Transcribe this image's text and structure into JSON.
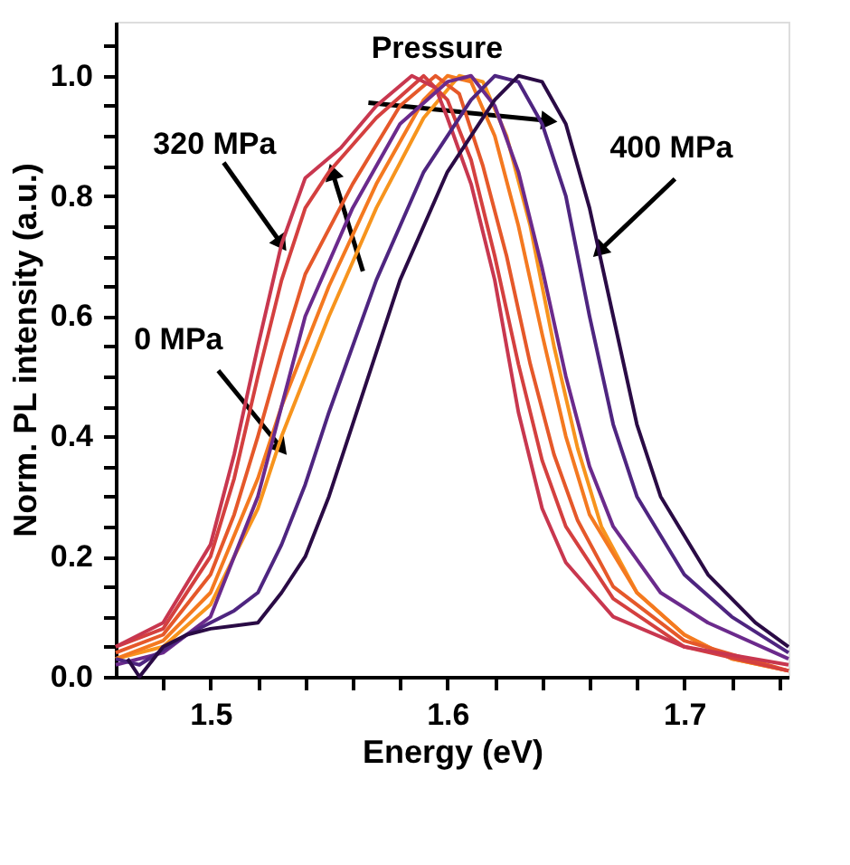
{
  "chart_data": {
    "type": "line",
    "xlabel": "Energy (eV)",
    "ylabel": "Norm. PL intensity (a.u.)",
    "xlim": [
      1.46,
      1.744
    ],
    "ylim": [
      0,
      1.09
    ],
    "xticks": [
      {
        "value": 1.48,
        "label": null
      },
      1.5,
      {
        "value": 1.52,
        "label": null
      },
      {
        "value": 1.54,
        "label": null
      },
      {
        "value": 1.56,
        "label": null
      },
      {
        "value": 1.58,
        "label": null
      },
      1.6,
      {
        "value": 1.62,
        "label": null
      },
      {
        "value": 1.64,
        "label": null
      },
      {
        "value": 1.66,
        "label": null
      },
      {
        "value": 1.68,
        "label": null
      },
      1.7,
      {
        "value": 1.72,
        "label": null
      },
      {
        "value": 1.74,
        "label": null
      }
    ],
    "yticks": [
      {
        "value": 0,
        "label": "0.0"
      },
      {
        "value": 0.05,
        "label": null
      },
      {
        "value": 0.1,
        "label": null
      },
      {
        "value": 0.15,
        "label": null
      },
      0.2,
      {
        "value": 0.25,
        "label": null
      },
      {
        "value": 0.3,
        "label": null
      },
      {
        "value": 0.35,
        "label": null
      },
      0.4,
      {
        "value": 0.45,
        "label": null
      },
      {
        "value": 0.5,
        "label": null
      },
      {
        "value": 0.55,
        "label": null
      },
      0.6,
      {
        "value": 0.65,
        "label": null
      },
      {
        "value": 0.7,
        "label": null
      },
      {
        "value": 0.75,
        "label": null
      },
      0.8,
      {
        "value": 0.85,
        "label": null
      },
      {
        "value": 0.9,
        "label": null
      },
      {
        "value": 0.95,
        "label": null
      },
      {
        "value": 1.0,
        "label": "1.0"
      },
      {
        "value": 1.05,
        "label": null
      }
    ],
    "grid": false,
    "legend": false,
    "marker": "none",
    "line_style": "solid",
    "series": [
      {
        "color": "#f7941d",
        "x": [
          1.46,
          1.48,
          1.5,
          1.52,
          1.53,
          1.55,
          1.57,
          1.59,
          1.605,
          1.615,
          1.625,
          1.635,
          1.645,
          1.655,
          1.665,
          1.68,
          1.7,
          1.72,
          1.744
        ],
        "values": [
          0.03,
          0.05,
          0.12,
          0.28,
          0.4,
          0.6,
          0.78,
          0.93,
          1.0,
          0.99,
          0.9,
          0.75,
          0.55,
          0.38,
          0.25,
          0.14,
          0.07,
          0.03,
          0.01
        ]
      },
      {
        "color": "#f47920",
        "x": [
          1.46,
          1.48,
          1.5,
          1.52,
          1.53,
          1.55,
          1.57,
          1.59,
          1.6,
          1.61,
          1.62,
          1.63,
          1.64,
          1.65,
          1.66,
          1.68,
          1.7,
          1.72,
          1.744
        ],
        "values": [
          0.03,
          0.06,
          0.14,
          0.33,
          0.45,
          0.65,
          0.82,
          0.96,
          1.0,
          0.99,
          0.9,
          0.75,
          0.57,
          0.4,
          0.27,
          0.14,
          0.07,
          0.03,
          0.01
        ]
      },
      {
        "color": "#e5582a",
        "x": [
          1.46,
          1.48,
          1.5,
          1.51,
          1.52,
          1.53,
          1.54,
          1.56,
          1.58,
          1.595,
          1.605,
          1.615,
          1.625,
          1.635,
          1.645,
          1.655,
          1.67,
          1.7,
          1.744
        ],
        "values": [
          0.04,
          0.07,
          0.17,
          0.27,
          0.4,
          0.54,
          0.67,
          0.82,
          0.95,
          1.0,
          0.97,
          0.85,
          0.7,
          0.52,
          0.37,
          0.26,
          0.15,
          0.06,
          0.01
        ]
      },
      {
        "color": "#d4403f",
        "x": [
          1.46,
          1.48,
          1.5,
          1.51,
          1.52,
          1.53,
          1.54,
          1.55,
          1.57,
          1.59,
          1.6,
          1.61,
          1.62,
          1.63,
          1.64,
          1.65,
          1.67,
          1.7,
          1.744
        ],
        "values": [
          0.05,
          0.08,
          0.2,
          0.33,
          0.5,
          0.66,
          0.78,
          0.84,
          0.93,
          1.0,
          0.96,
          0.86,
          0.7,
          0.52,
          0.36,
          0.25,
          0.13,
          0.05,
          0.01
        ]
      },
      {
        "color": "#c8374f",
        "x": [
          1.46,
          1.48,
          1.5,
          1.51,
          1.52,
          1.53,
          1.54,
          1.555,
          1.57,
          1.585,
          1.595,
          1.6,
          1.61,
          1.62,
          1.63,
          1.64,
          1.65,
          1.67,
          1.7,
          1.744
        ],
        "values": [
          0.05,
          0.09,
          0.22,
          0.37,
          0.55,
          0.72,
          0.83,
          0.88,
          0.95,
          1.0,
          0.98,
          0.93,
          0.82,
          0.66,
          0.44,
          0.28,
          0.19,
          0.1,
          0.05,
          0.02
        ]
      },
      {
        "color": "#6b2a8c",
        "x": [
          1.46,
          1.48,
          1.5,
          1.52,
          1.53,
          1.54,
          1.56,
          1.58,
          1.6,
          1.61,
          1.62,
          1.63,
          1.64,
          1.65,
          1.66,
          1.67,
          1.69,
          1.71,
          1.744
        ],
        "values": [
          0.02,
          0.04,
          0.1,
          0.3,
          0.45,
          0.6,
          0.78,
          0.92,
          0.99,
          1.0,
          0.95,
          0.84,
          0.68,
          0.5,
          0.35,
          0.25,
          0.14,
          0.09,
          0.03
        ]
      },
      {
        "color": "#4e2580",
        "x": [
          1.46,
          1.47,
          1.49,
          1.51,
          1.52,
          1.53,
          1.54,
          1.55,
          1.57,
          1.59,
          1.61,
          1.62,
          1.63,
          1.64,
          1.65,
          1.66,
          1.67,
          1.68,
          1.7,
          1.72,
          1.744
        ],
        "values": [
          0.03,
          0.02,
          0.07,
          0.11,
          0.14,
          0.22,
          0.32,
          0.44,
          0.66,
          0.84,
          0.96,
          1.0,
          0.99,
          0.92,
          0.8,
          0.6,
          0.42,
          0.3,
          0.17,
          0.1,
          0.04
        ]
      },
      {
        "color": "#2a0b45",
        "x": [
          1.465,
          1.47,
          1.48,
          1.49,
          1.5,
          1.52,
          1.53,
          1.54,
          1.55,
          1.56,
          1.58,
          1.6,
          1.62,
          1.63,
          1.64,
          1.65,
          1.66,
          1.67,
          1.68,
          1.69,
          1.71,
          1.73,
          1.744
        ],
        "values": [
          0.03,
          0.0,
          0.05,
          0.07,
          0.08,
          0.09,
          0.14,
          0.2,
          0.3,
          0.42,
          0.66,
          0.84,
          0.96,
          1.0,
          0.99,
          0.92,
          0.78,
          0.6,
          0.42,
          0.3,
          0.17,
          0.09,
          0.05
        ]
      }
    ],
    "annotations": [
      {
        "text": "Pressure",
        "x": 1.643,
        "y": 0.925
      },
      {
        "text": "320 MPa",
        "x": 1.53,
        "y": 0.72
      },
      {
        "text": "0 MPa",
        "x": 1.53,
        "y": 0.38
      },
      {
        "text": "400 MPa",
        "x": 1.664,
        "y": 0.708
      }
    ]
  }
}
